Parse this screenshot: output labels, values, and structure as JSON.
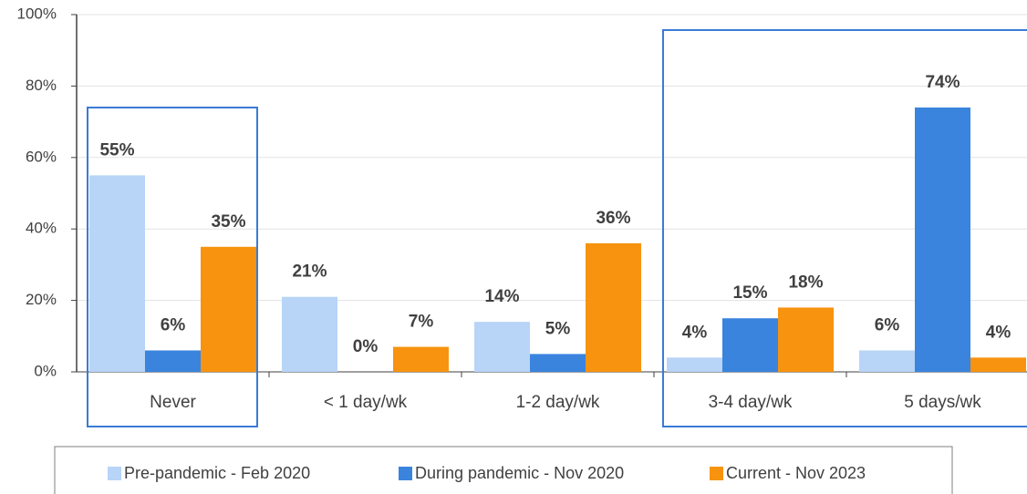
{
  "chart_data": {
    "type": "bar",
    "categories": [
      "Never",
      "< 1 day/wk",
      "1-2 day/wk",
      "3-4 day/wk",
      "5 days/wk"
    ],
    "series": [
      {
        "name": "Pre-pandemic - Feb 2020",
        "color": "#b8d4f7",
        "values": [
          55,
          21,
          14,
          4,
          6
        ],
        "value_labels": [
          "55%",
          "21%",
          "14%",
          "4%",
          "6%"
        ]
      },
      {
        "name": "During pandemic - Nov 2020",
        "color": "#3a84de",
        "values": [
          6,
          0,
          5,
          15,
          74
        ],
        "value_labels": [
          "6%",
          "0%",
          "5%",
          "15%",
          "74%"
        ]
      },
      {
        "name": "Current - Nov 2023",
        "color": "#f7930f",
        "values": [
          35,
          7,
          36,
          18,
          4
        ],
        "value_labels": [
          "35%",
          "7%",
          "36%",
          "18%",
          "4%"
        ]
      }
    ],
    "ylim": [
      0,
      100
    ],
    "yticks": [
      {
        "value": 0,
        "label": "0%"
      },
      {
        "value": 20,
        "label": "20%"
      },
      {
        "value": 40,
        "label": "40%"
      },
      {
        "value": 60,
        "label": "60%"
      },
      {
        "value": 80,
        "label": "80%"
      },
      {
        "value": 100,
        "label": "100%"
      }
    ],
    "grid": true,
    "legend": "bottom"
  }
}
